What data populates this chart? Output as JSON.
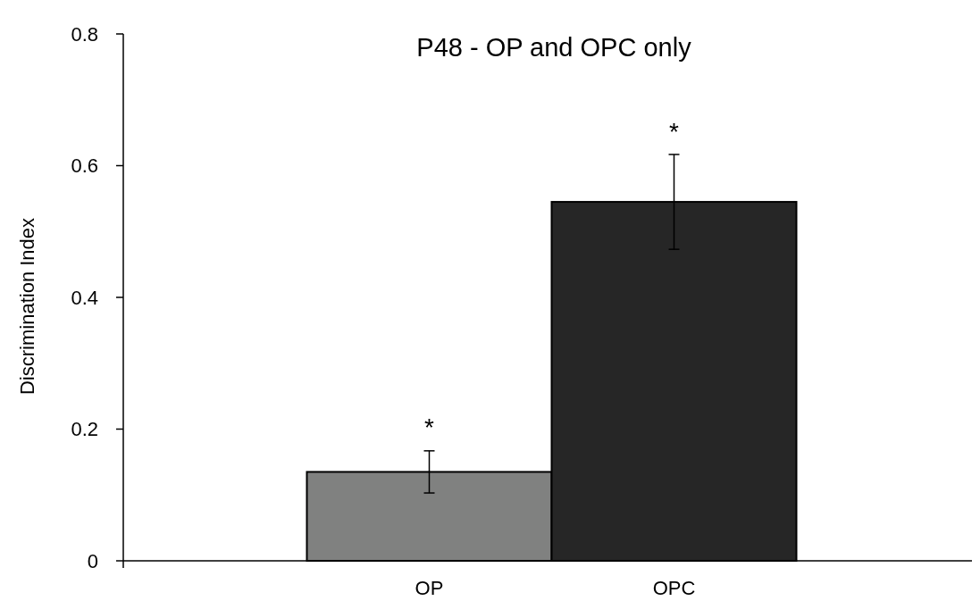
{
  "chart_data": {
    "type": "bar",
    "title": "P48 - OP and OPC only",
    "ylabel": "Discrimination Index",
    "categories": [
      "OP",
      "OPC"
    ],
    "values": [
      0.135,
      0.545
    ],
    "colors": [
      "#808180",
      "#262626"
    ],
    "errors": [
      0.032,
      0.072
    ],
    "ylim": [
      0,
      0.8
    ],
    "yticks": [
      {
        "value": 0,
        "label": "0"
      },
      0.2,
      0.4,
      0.6,
      0.8
    ],
    "annotations": [
      "*",
      "*"
    ],
    "grid": false
  }
}
